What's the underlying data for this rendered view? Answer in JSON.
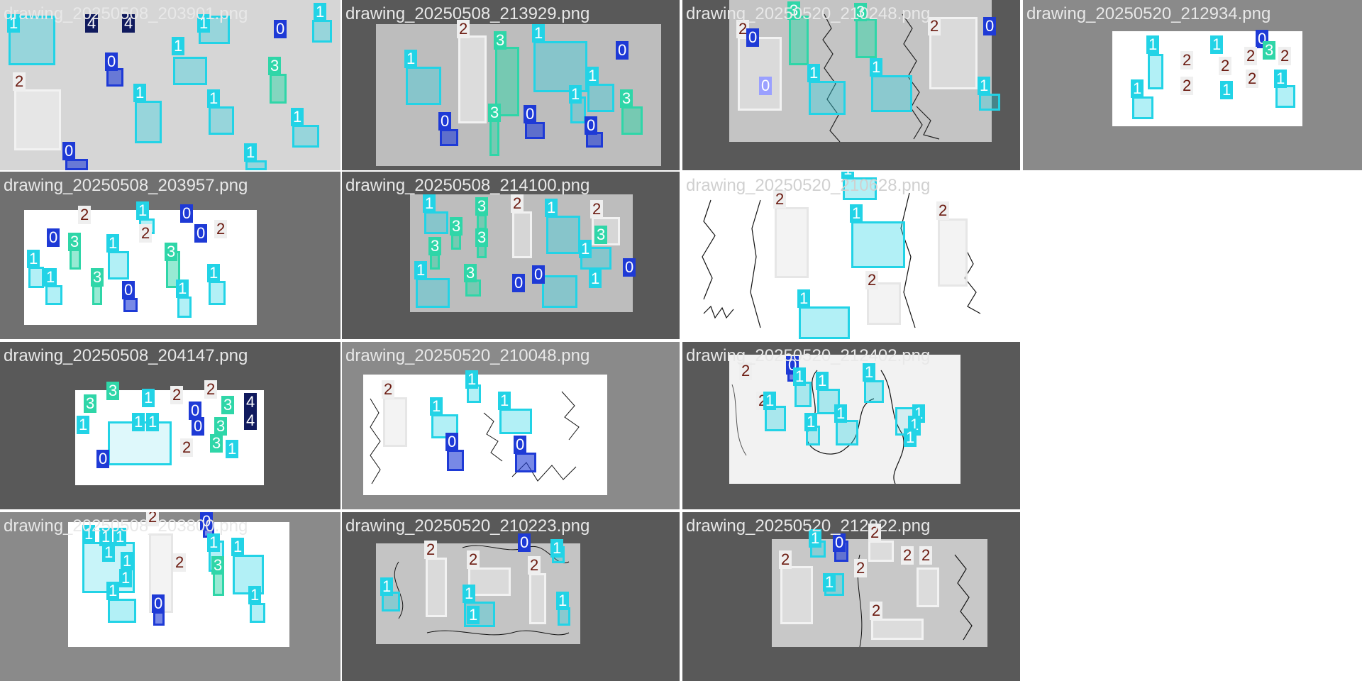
{
  "colors": {
    "class_0": "#1e3ad6",
    "class_1": "#22d3e6",
    "class_2": "#f2f2f2",
    "class_3": "#2fd6a8",
    "class_4": "#101a5e",
    "tile_dark": "#595959",
    "tile_mid": "#8a8a8a",
    "tile_light": "#d8d8d8",
    "title_text": "#e8e8e8"
  },
  "tiles": [
    {
      "id": "t1",
      "title": "drawing_20250508_203901.png"
    },
    {
      "id": "t2",
      "title": "drawing_20250508_213929.png"
    },
    {
      "id": "t3",
      "title": "drawing_20250520_210248.png"
    },
    {
      "id": "t4",
      "title": "drawing_20250520_212934.png"
    },
    {
      "id": "t5",
      "title": "drawing_20250508_203957.png"
    },
    {
      "id": "t6",
      "title": "drawing_20250508_214100.png"
    },
    {
      "id": "t7",
      "title": "drawing_20250520_210628.png"
    },
    {
      "id": "t8",
      "title": "drawing_20250508_204147.png"
    },
    {
      "id": "t9",
      "title": "drawing_20250520_210048.png"
    },
    {
      "id": "t10",
      "title": "drawing_20250520_212402.png"
    },
    {
      "id": "t11",
      "title": "drawing_20250508_203800.png"
    },
    {
      "id": "t12",
      "title": "drawing_20250520_210223.png"
    },
    {
      "id": "t13",
      "title": "drawing_20250520_212822.png"
    }
  ],
  "labels": {
    "l0": "0",
    "l1": "1",
    "l2": "2",
    "l3": "3",
    "l4": "4"
  }
}
